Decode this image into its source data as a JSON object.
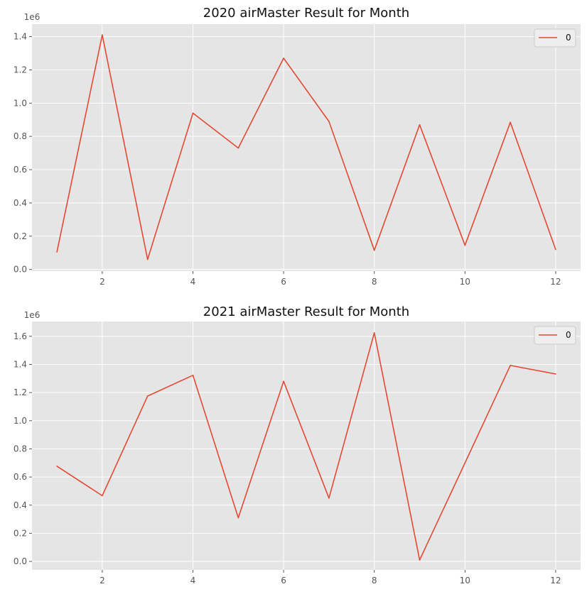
{
  "colors": {
    "background": "#ffffff",
    "axes_face": "#e5e5e5",
    "grid": "#ffffff",
    "line": "#e24a33",
    "text": "#555555",
    "title": "#111111",
    "legend_face": "#eeeeee",
    "legend_edge": "#cccccc"
  },
  "chart_data": [
    {
      "type": "line",
      "title": "2020 airMaster Result for Month",
      "xlabel": "",
      "ylabel": "",
      "y_offset_label": "1e6",
      "x": [
        1,
        2,
        3,
        4,
        5,
        6,
        7,
        8,
        9,
        10,
        11,
        12
      ],
      "series": [
        {
          "name": "0",
          "values": [
            105000,
            1410000,
            60000,
            940000,
            730000,
            1270000,
            890000,
            115000,
            870000,
            145000,
            885000,
            120000
          ]
        }
      ],
      "xlim": [
        0.45,
        12.55
      ],
      "ylim": [
        -10000,
        1475000
      ],
      "xticks": [
        2,
        4,
        6,
        8,
        10,
        12
      ],
      "xtick_labels": [
        "2",
        "4",
        "6",
        "8",
        "10",
        "12"
      ],
      "yticks": [
        0,
        200000,
        400000,
        600000,
        800000,
        1000000,
        1200000,
        1400000
      ],
      "ytick_labels": [
        "0.0",
        "0.2",
        "0.4",
        "0.6",
        "0.8",
        "1.0",
        "1.2",
        "1.4"
      ],
      "grid": true,
      "legend": "top-right"
    },
    {
      "type": "line",
      "title": "2021 airMaster Result for Month",
      "xlabel": "",
      "ylabel": "",
      "y_offset_label": "1e6",
      "x": [
        1,
        2,
        3,
        4,
        5,
        6,
        7,
        8,
        9,
        10,
        11,
        12
      ],
      "series": [
        {
          "name": "0",
          "values": [
            677000,
            467000,
            1175000,
            1323000,
            310000,
            1280000,
            450000,
            1625000,
            10000,
            700000,
            1393000,
            1332000
          ]
        }
      ],
      "xlim": [
        0.45,
        12.55
      ],
      "ylim": [
        -60000,
        1705000
      ],
      "xticks": [
        2,
        4,
        6,
        8,
        10,
        12
      ],
      "xtick_labels": [
        "2",
        "4",
        "6",
        "8",
        "10",
        "12"
      ],
      "yticks": [
        0,
        200000,
        400000,
        600000,
        800000,
        1000000,
        1200000,
        1400000,
        1600000
      ],
      "ytick_labels": [
        "0.0",
        "0.2",
        "0.4",
        "0.6",
        "0.8",
        "1.0",
        "1.2",
        "1.4",
        "1.6"
      ],
      "grid": true,
      "legend": "top-right"
    }
  ]
}
